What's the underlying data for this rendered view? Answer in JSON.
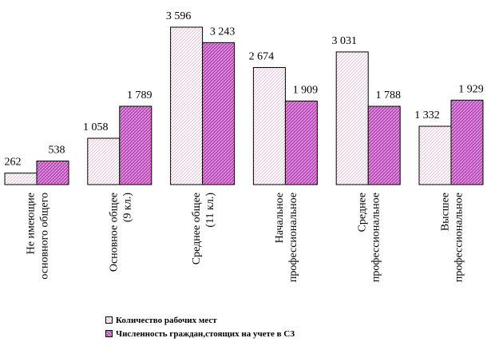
{
  "colors": {
    "series1_fill": "#ffffff",
    "series1_pattern": "#f2a8c8",
    "series2_fill": "#b64fb6",
    "series2_pattern": "#ffffff",
    "stroke": "#000000"
  },
  "chart_data": {
    "type": "bar",
    "categories": [
      [
        "Не имеющие",
        "основного общего"
      ],
      [
        "Основное общее",
        "(9 кл.)"
      ],
      [
        "Среднее общее",
        "(11 кл.)"
      ],
      [
        "Начальное",
        "профессиональное"
      ],
      [
        "Среднее",
        "профессиональное"
      ],
      [
        "Высшее",
        "профессиональное"
      ]
    ],
    "series": [
      {
        "name": "Количество рабочих мест",
        "values": [
          262,
          1058,
          3596,
          2674,
          3031,
          1332
        ],
        "labels": [
          "262",
          "1 058",
          "3 596",
          "2 674",
          "3 031",
          "1 332"
        ]
      },
      {
        "name": "Численность граждан,стоящих на учете в СЗ",
        "values": [
          538,
          1789,
          3243,
          1909,
          1788,
          1929
        ],
        "labels": [
          "538",
          "1 789",
          "3 243",
          "1 909",
          "1 788",
          "1 929"
        ]
      }
    ],
    "ylim": [
      0,
      3596
    ],
    "grid": false,
    "legend_position": "bottom-left"
  }
}
